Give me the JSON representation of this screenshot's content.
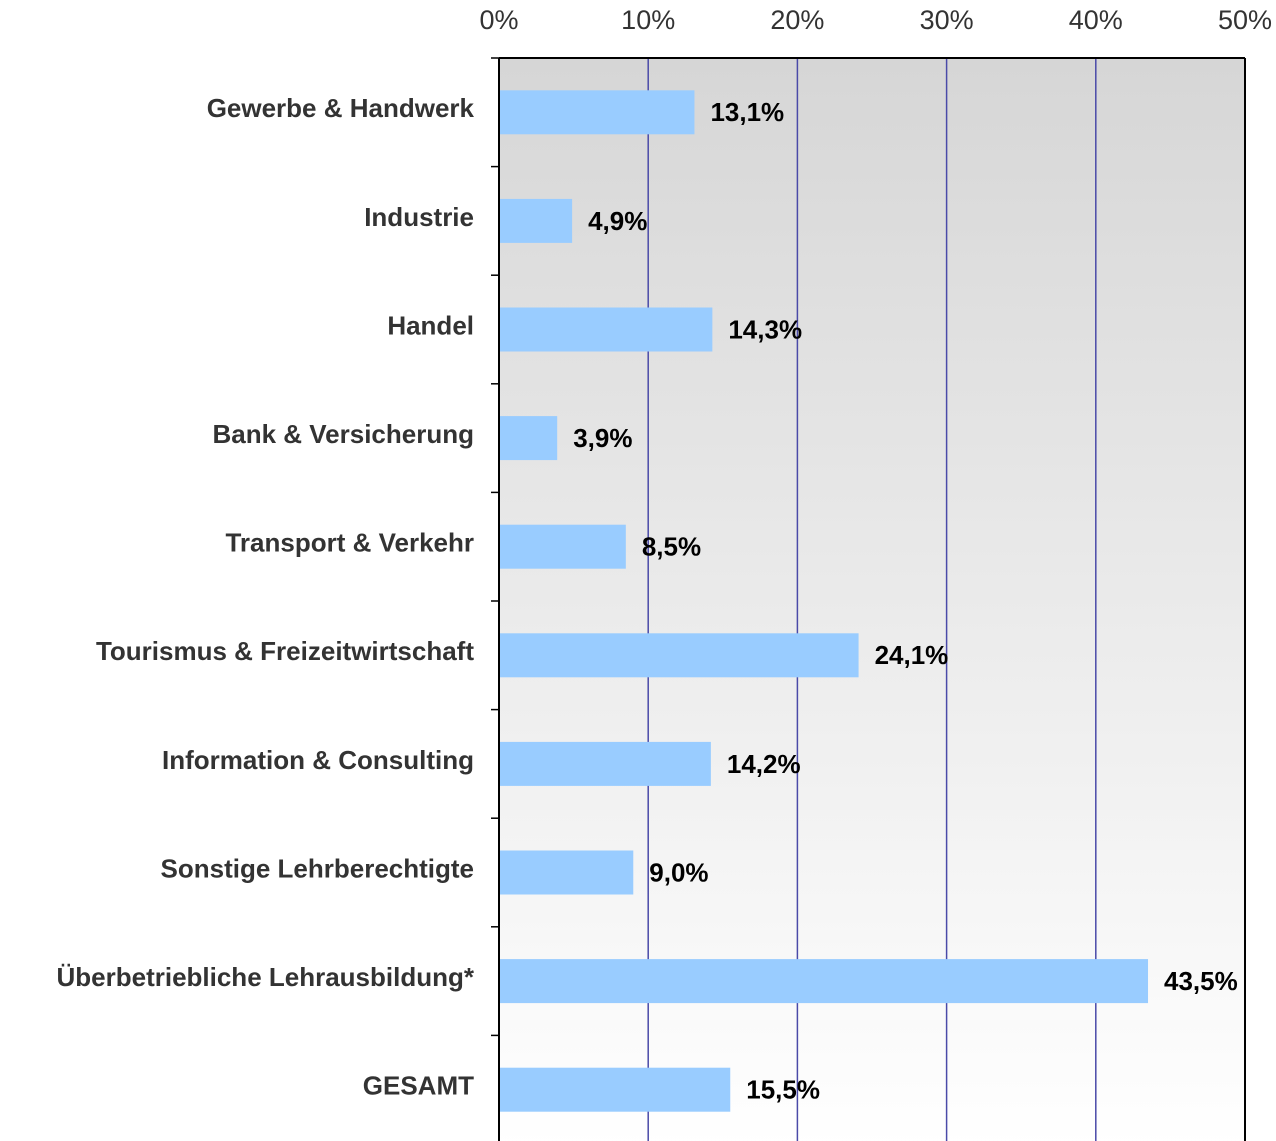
{
  "chart_data": {
    "type": "bar",
    "orientation": "horizontal",
    "categories": [
      "Gewerbe & Handwerk",
      "Industrie",
      "Handel",
      "Bank & Versicherung",
      "Transport & Verkehr",
      "Tourismus & Freizeitwirtschaft",
      "Information & Consulting",
      "Sonstige Lehrberechtigte",
      "Überbetriebliche Lehrausbildung*",
      "GESAMT"
    ],
    "values": [
      13.1,
      4.9,
      14.3,
      3.9,
      8.5,
      24.1,
      14.2,
      9.0,
      43.5,
      15.5
    ],
    "value_labels": [
      "13,1%",
      "4,9%",
      "14,3%",
      "3,9%",
      "8,5%",
      "24,1%",
      "14,2%",
      "9,0%",
      "43,5%",
      "15,5%"
    ],
    "color": "#99ccff",
    "xlim": [
      0,
      50
    ],
    "xticks": [
      {
        "value": 0,
        "label": "0%"
      },
      {
        "value": 10,
        "label": "10%"
      },
      {
        "value": 20,
        "label": "20%"
      },
      {
        "value": 30,
        "label": "30%"
      },
      {
        "value": 40,
        "label": "40%"
      },
      {
        "value": 50,
        "label": "50%"
      }
    ],
    "grid": true
  }
}
